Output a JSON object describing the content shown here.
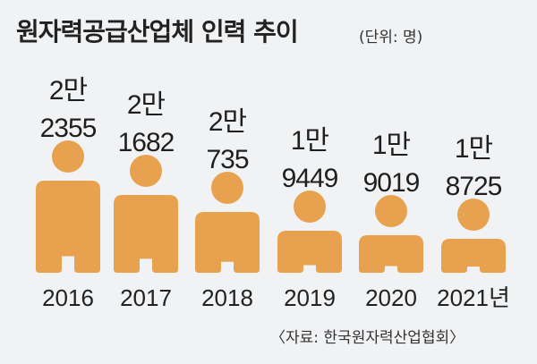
{
  "title": "원자력공급산업체 인력 추이",
  "unit": "(단위: 명)",
  "source": "〈자료: 한국원자력산업협회〉",
  "colors": {
    "figure": "#e8a24f",
    "background": "#f1f2f4"
  },
  "chart_data": {
    "type": "bar",
    "title": "원자력공급산업체 인력 추이",
    "unit": "명",
    "categories": [
      "2016",
      "2017",
      "2018",
      "2019",
      "2020",
      "2021년"
    ],
    "values": [
      22355,
      21682,
      20735,
      19449,
      19019,
      18725
    ],
    "value_labels": [
      [
        "2만",
        "2355"
      ],
      [
        "2만",
        "1682"
      ],
      [
        "2만",
        "735"
      ],
      [
        "1만",
        "9449"
      ],
      [
        "1만",
        "9019"
      ],
      [
        "1만",
        "8725"
      ]
    ]
  }
}
